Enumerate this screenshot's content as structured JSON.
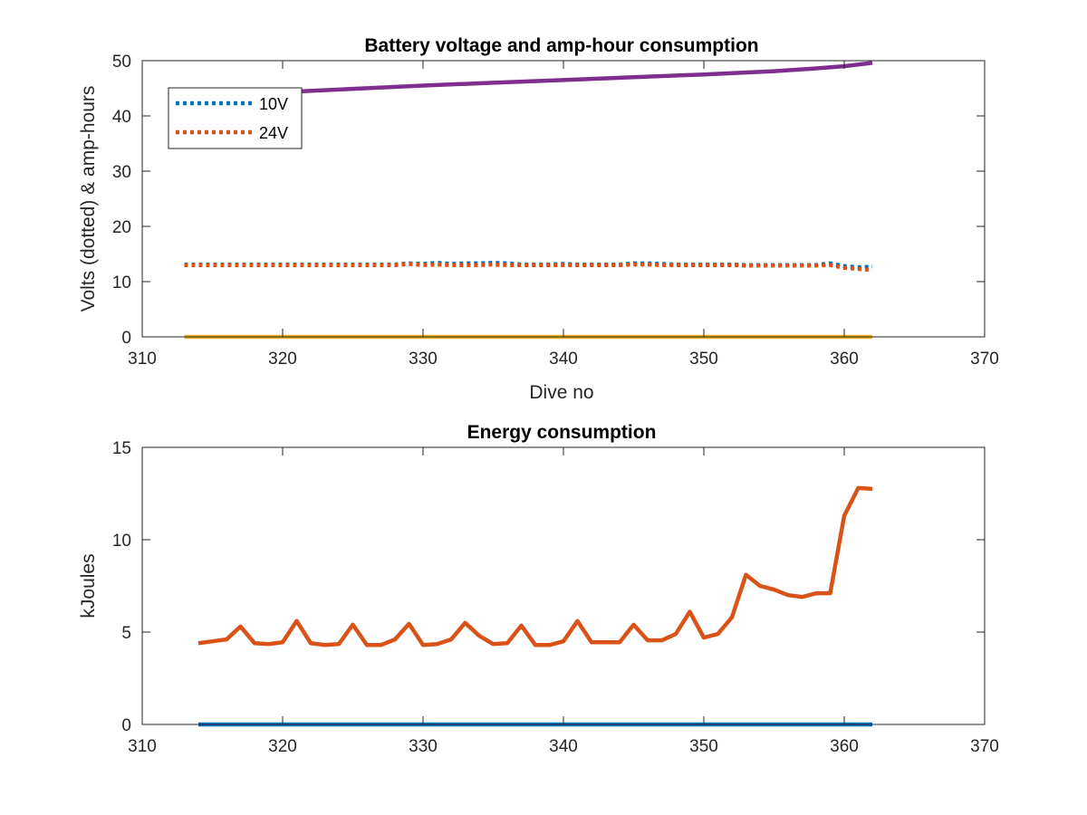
{
  "colors": {
    "axis": "#262626",
    "series_10v": "#0072BD",
    "series_24v": "#D95319",
    "series_3": "#EDB120",
    "series_4": "#7E2F8E"
  },
  "chart_data": [
    {
      "type": "line",
      "title": "Battery voltage and amp-hour consumption",
      "xlabel": "Dive no",
      "ylabel": "Volts (dotted) & amp-hours",
      "xlim": [
        310,
        370
      ],
      "ylim": [
        0,
        50
      ],
      "xticks": [
        310,
        320,
        330,
        340,
        350,
        360,
        370
      ],
      "yticks": [
        0,
        10,
        20,
        30,
        40,
        50
      ],
      "xtick_labels": [
        "310",
        "320",
        "330",
        "340",
        "350",
        "360",
        "370"
      ],
      "ytick_labels": [
        "0",
        "10",
        "20",
        "30",
        "40",
        "50"
      ],
      "grid": false,
      "legend_position": "top-left",
      "x": [
        313,
        314,
        315,
        316,
        317,
        318,
        319,
        320,
        321,
        322,
        323,
        324,
        325,
        326,
        327,
        328,
        329,
        330,
        331,
        332,
        333,
        334,
        335,
        336,
        337,
        338,
        339,
        340,
        341,
        342,
        343,
        344,
        345,
        346,
        347,
        348,
        349,
        350,
        351,
        352,
        353,
        354,
        355,
        356,
        357,
        358,
        359,
        360,
        361,
        362
      ],
      "series": [
        {
          "name": "10V",
          "style": "dotted",
          "color_key": "series_10v",
          "values": [
            13.1,
            13.1,
            13.1,
            13.1,
            13.1,
            13.1,
            13.1,
            13.1,
            13.1,
            13.1,
            13.1,
            13.1,
            13.1,
            13.1,
            13.1,
            13.1,
            13.3,
            13.2,
            13.4,
            13.2,
            13.3,
            13.3,
            13.4,
            13.3,
            13.1,
            13.1,
            13.1,
            13.2,
            13.1,
            13.1,
            13.1,
            13.1,
            13.3,
            13.3,
            13.2,
            13.1,
            13.1,
            13.1,
            13.1,
            13.1,
            13.0,
            13.0,
            13.0,
            13.0,
            13.0,
            13.0,
            13.3,
            12.8,
            12.6,
            12.7
          ]
        },
        {
          "name": "24V",
          "style": "dotted",
          "color_key": "series_24v",
          "values": [
            13.0,
            13.0,
            13.0,
            13.0,
            13.0,
            13.0,
            13.0,
            13.0,
            13.0,
            13.0,
            13.0,
            13.0,
            13.0,
            13.0,
            13.0,
            13.0,
            13.2,
            13.0,
            13.1,
            13.0,
            13.0,
            13.0,
            13.1,
            13.0,
            13.0,
            13.0,
            13.0,
            13.0,
            13.0,
            13.0,
            13.0,
            13.0,
            13.1,
            13.1,
            13.0,
            13.0,
            13.0,
            13.0,
            13.0,
            13.0,
            12.9,
            12.9,
            12.9,
            12.9,
            12.9,
            12.9,
            13.0,
            12.5,
            12.3,
            12.1
          ]
        },
        {
          "style": "solid",
          "color_key": "series_3",
          "values": [
            0,
            0,
            0,
            0,
            0,
            0,
            0,
            0,
            0,
            0,
            0,
            0,
            0,
            0,
            0,
            0,
            0,
            0,
            0,
            0,
            0,
            0,
            0,
            0,
            0,
            0,
            0,
            0,
            0,
            0,
            0,
            0,
            0,
            0,
            0,
            0,
            0,
            0,
            0,
            0,
            0,
            0,
            0,
            0,
            0,
            0,
            0,
            0,
            0,
            0
          ]
        },
        {
          "style": "solid",
          "color_key": "series_4",
          "x": [
            320,
            325,
            330,
            335,
            340,
            345,
            350,
            355,
            358,
            360,
            362
          ],
          "values": [
            44.3,
            44.9,
            45.5,
            46.0,
            46.5,
            47.0,
            47.5,
            48.1,
            48.6,
            49.0,
            49.6
          ]
        }
      ]
    },
    {
      "type": "line",
      "title": "Energy consumption",
      "xlabel": "",
      "ylabel": "kJoules",
      "xlim": [
        310,
        370
      ],
      "ylim": [
        0,
        15
      ],
      "xticks": [
        310,
        320,
        330,
        340,
        350,
        360,
        370
      ],
      "yticks": [
        0,
        5,
        10,
        15
      ],
      "xtick_labels": [
        "310",
        "320",
        "330",
        "340",
        "350",
        "360",
        "370"
      ],
      "ytick_labels": [
        "0",
        "5",
        "10",
        "15"
      ],
      "grid": false,
      "x": [
        314,
        315,
        316,
        317,
        318,
        319,
        320,
        321,
        322,
        323,
        324,
        325,
        326,
        327,
        328,
        329,
        330,
        331,
        332,
        333,
        334,
        335,
        336,
        337,
        338,
        339,
        340,
        341,
        342,
        343,
        344,
        345,
        346,
        347,
        348,
        349,
        350,
        351,
        352,
        353,
        354,
        355,
        356,
        357,
        358,
        359,
        360,
        361,
        362
      ],
      "series": [
        {
          "style": "solid",
          "color_key": "series_10v",
          "values": [
            0,
            0,
            0,
            0,
            0,
            0,
            0,
            0,
            0,
            0,
            0,
            0,
            0,
            0,
            0,
            0,
            0,
            0,
            0,
            0,
            0,
            0,
            0,
            0,
            0,
            0,
            0,
            0,
            0,
            0,
            0,
            0,
            0,
            0,
            0,
            0,
            0,
            0,
            0,
            0,
            0,
            0,
            0,
            0,
            0,
            0,
            0,
            0,
            0
          ]
        },
        {
          "style": "solid",
          "color_key": "series_24v",
          "values": [
            4.4,
            4.5,
            4.6,
            5.3,
            4.4,
            4.35,
            4.45,
            5.6,
            4.4,
            4.3,
            4.35,
            5.4,
            4.3,
            4.3,
            4.6,
            5.45,
            4.3,
            4.35,
            4.6,
            5.5,
            4.8,
            4.35,
            4.4,
            5.35,
            4.3,
            4.3,
            4.5,
            5.6,
            4.45,
            4.45,
            4.45,
            5.4,
            4.55,
            4.55,
            4.9,
            6.1,
            4.7,
            4.9,
            5.8,
            8.1,
            7.5,
            7.3,
            7.0,
            6.9,
            7.1,
            7.1,
            11.3,
            12.8,
            12.75
          ]
        }
      ]
    }
  ]
}
